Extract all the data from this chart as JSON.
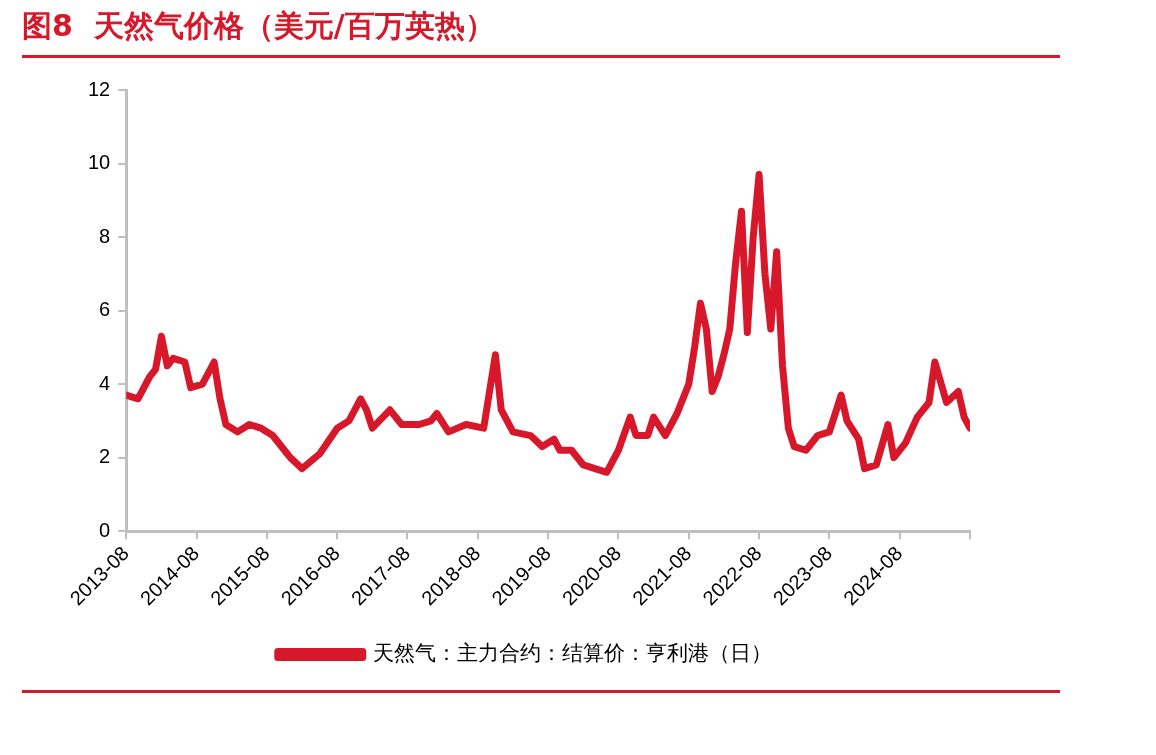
{
  "chart_data": {
    "type": "line",
    "title": "图8  天然气价格（美元/百万英热）",
    "x": [
      "2013-08",
      "2013-10",
      "2013-12",
      "2014-01",
      "2014-02",
      "2014-03",
      "2014-04",
      "2014-06",
      "2014-07",
      "2014-09",
      "2014-11",
      "2014-12",
      "2015-01",
      "2015-03",
      "2015-05",
      "2015-07",
      "2015-09",
      "2015-11",
      "2015-12",
      "2016-02",
      "2016-05",
      "2016-08",
      "2016-10",
      "2016-12",
      "2017-01",
      "2017-02",
      "2017-05",
      "2017-07",
      "2017-10",
      "2017-12",
      "2018-01",
      "2018-03",
      "2018-06",
      "2018-09",
      "2018-11",
      "2018-12",
      "2019-02",
      "2019-05",
      "2019-07",
      "2019-09",
      "2019-10",
      "2019-12",
      "2020-02",
      "2020-04",
      "2020-06",
      "2020-08",
      "2020-10",
      "2020-11",
      "2021-01",
      "2021-02",
      "2021-04",
      "2021-06",
      "2021-08",
      "2021-09",
      "2021-10",
      "2021-11",
      "2021-12",
      "2022-01",
      "2022-02",
      "2022-03",
      "2022-04",
      "2022-05",
      "2022-06",
      "2022-07",
      "2022-08",
      "2022-09",
      "2022-10",
      "2022-11",
      "2022-12",
      "2023-01",
      "2023-02",
      "2023-04",
      "2023-06",
      "2023-08",
      "2023-10",
      "2023-11",
      "2024-01",
      "2024-02",
      "2024-04",
      "2024-06",
      "2024-07",
      "2024-09",
      "2024-11",
      "2025-01",
      "2025-02",
      "2025-04",
      "2025-06",
      "2025-07",
      "2025-08"
    ],
    "series": [
      {
        "name": "天然气：主力合约：结算价：亨利港（日）",
        "color": "#d7182a",
        "values": [
          3.7,
          3.6,
          4.2,
          4.4,
          5.3,
          4.5,
          4.7,
          4.6,
          3.9,
          4.0,
          4.6,
          3.6,
          2.9,
          2.7,
          2.9,
          2.8,
          2.6,
          2.2,
          2.0,
          1.7,
          2.1,
          2.8,
          3.0,
          3.6,
          3.3,
          2.8,
          3.3,
          2.9,
          2.9,
          3.0,
          3.2,
          2.7,
          2.9,
          2.8,
          4.8,
          3.3,
          2.7,
          2.6,
          2.3,
          2.5,
          2.2,
          2.2,
          1.8,
          1.7,
          1.6,
          2.2,
          3.1,
          2.6,
          2.6,
          3.1,
          2.6,
          3.2,
          4.0,
          5.0,
          6.2,
          5.5,
          3.8,
          4.2,
          4.8,
          5.5,
          7.3,
          8.7,
          5.4,
          8.0,
          9.7,
          7.0,
          5.5,
          7.6,
          4.5,
          2.8,
          2.3,
          2.2,
          2.6,
          2.7,
          3.7,
          3.0,
          2.5,
          1.7,
          1.8,
          2.9,
          2.0,
          2.4,
          3.1,
          3.5,
          4.6,
          3.5,
          3.8,
          3.1,
          2.8
        ]
      }
    ],
    "xlim": [
      "2013-08",
      "2025-08"
    ],
    "xticks": [
      "2013-08",
      "2014-08",
      "2015-08",
      "2016-08",
      "2017-08",
      "2018-08",
      "2019-08",
      "2020-08",
      "2021-08",
      "2022-08",
      "2023-08",
      "2024-08",
      {
        "value": "2025-08",
        "label": null
      }
    ],
    "ylim": [
      0,
      12
    ],
    "yticks": [
      0,
      2,
      4,
      6,
      8,
      10,
      12
    ],
    "grid": false,
    "legend": "bottom"
  }
}
